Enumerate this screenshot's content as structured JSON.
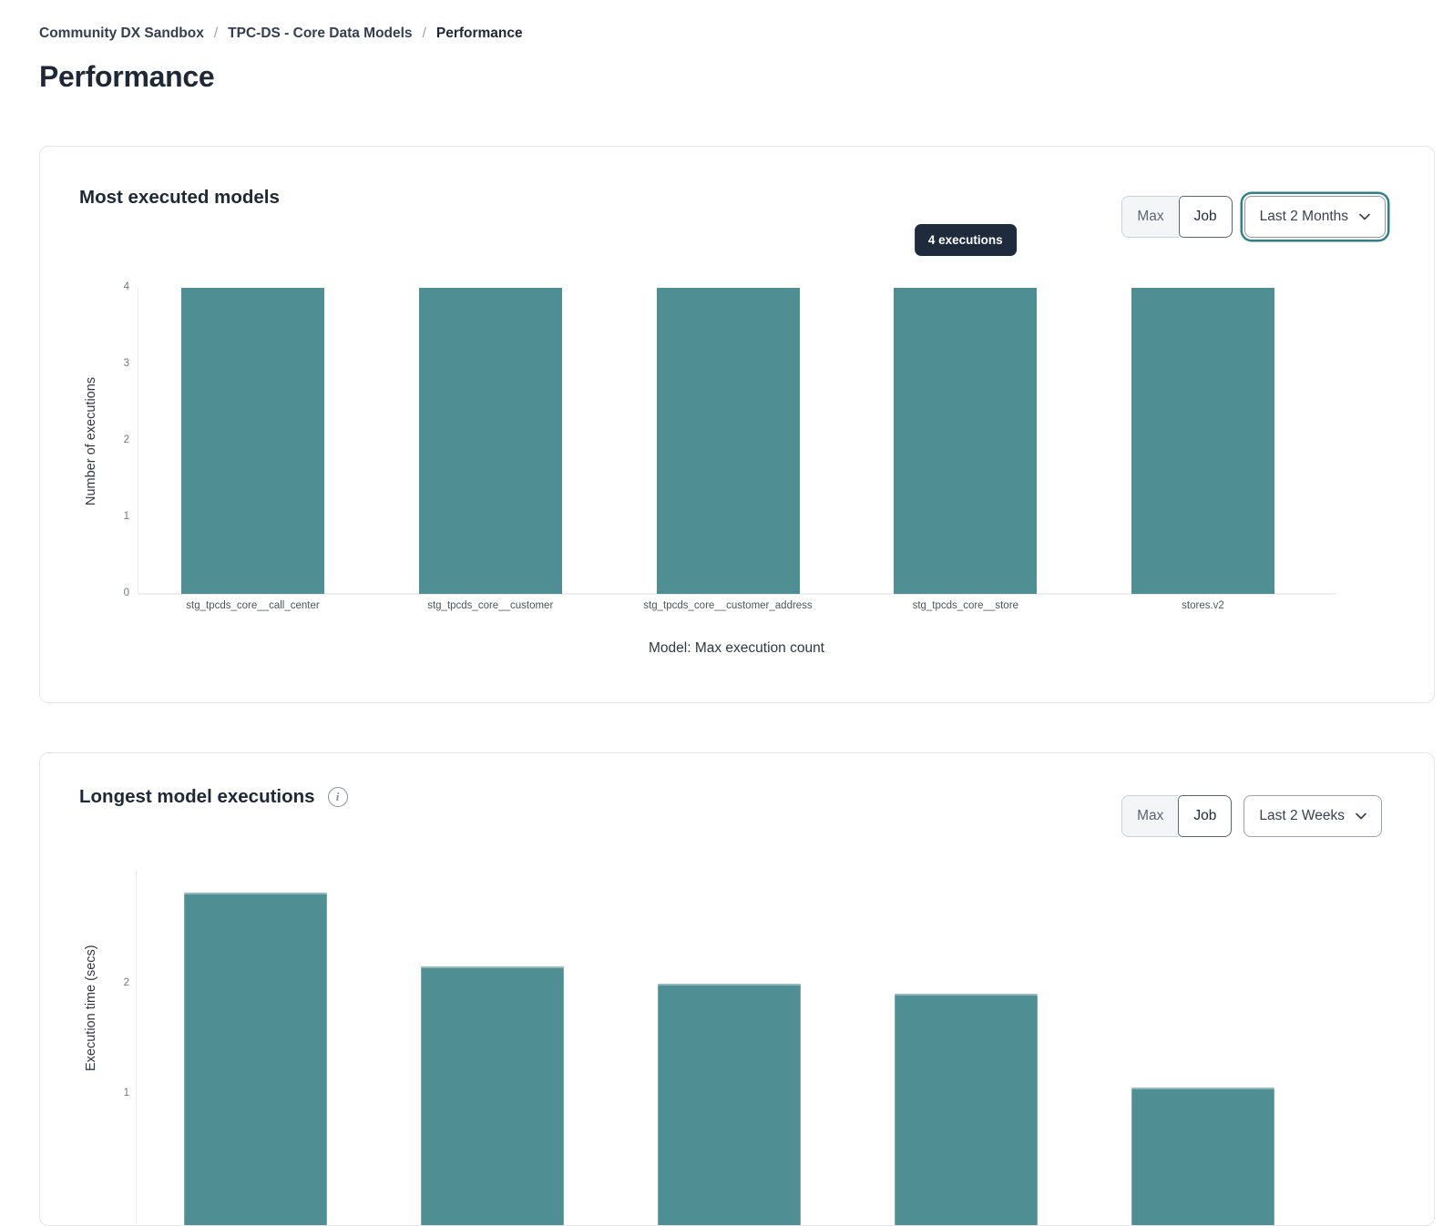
{
  "breadcrumb": {
    "separator": "/",
    "items": [
      "Community DX Sandbox",
      "TPC-DS - Core Data Models",
      "Performance"
    ]
  },
  "page": {
    "title": "Performance"
  },
  "icons": {
    "info": "i"
  },
  "colors": {
    "bar_teal": "#4f8f94",
    "tooltip_bg": "#1f2a3c",
    "focus_ring_teal": "#2f8089"
  },
  "cards": [
    {
      "title": "Most executed models",
      "toggle": {
        "options": [
          "Max",
          "Job"
        ],
        "selected": "Job"
      },
      "period_select": {
        "value": "Last 2 Months",
        "focused": true
      }
    },
    {
      "title": "Longest model executions",
      "has_info_icon": true,
      "toggle": {
        "options": [
          "Max",
          "Job"
        ],
        "selected": "Job"
      },
      "period_select": {
        "value": "Last 2 Weeks",
        "focused": false
      }
    }
  ],
  "chart_data": [
    {
      "type": "bar",
      "title": "Most executed models",
      "categories": [
        "stg_tpcds_core__call_center",
        "stg_tpcds_core__customer",
        "stg_tpcds_core__customer_address",
        "stg_tpcds_core__store",
        "stores.v2"
      ],
      "values": [
        4,
        4,
        4,
        4,
        4
      ],
      "xlabel": "Model: Max execution count",
      "ylabel": "Number of executions",
      "ylim": [
        0,
        4
      ],
      "yticks": [
        0,
        1,
        2,
        3,
        4
      ],
      "bar_color": "#4f8f94",
      "grid": false,
      "legend": false,
      "tooltip": {
        "text": "4 executions",
        "bar_index": 3
      }
    },
    {
      "type": "bar",
      "title": "Longest model executions",
      "values": [
        2.83,
        2.16,
        2.0,
        1.91,
        1.06
      ],
      "ylabel": "Execution time (secs)",
      "yticks": [
        1,
        2
      ],
      "bar_color": "#4f8f94",
      "grid": false,
      "legend": false,
      "clipped_at_viewport_bottom": true
    }
  ]
}
